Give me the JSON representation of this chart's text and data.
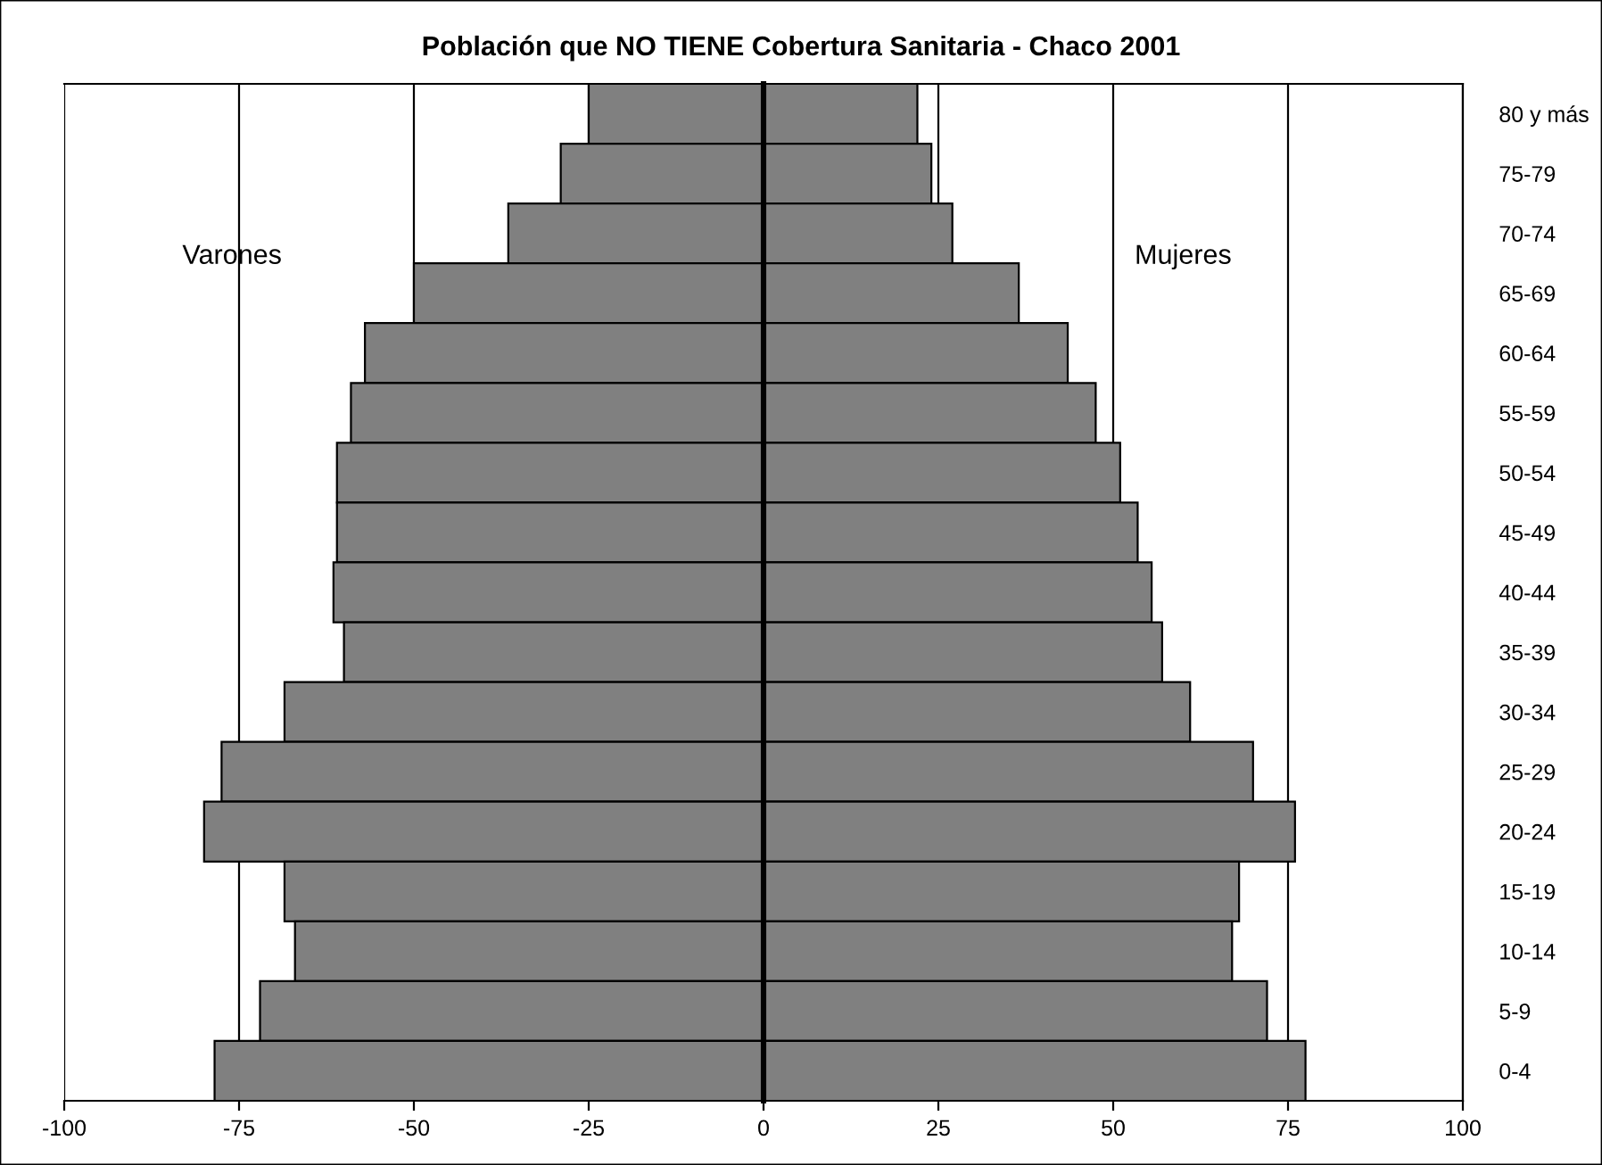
{
  "chart_data": {
    "type": "bar",
    "orientation": "horizontal",
    "title": "Población que NO TIENE Cobertura Sanitaria - Chaco 2001",
    "categories": [
      "80 y más",
      "75-79",
      "70-74",
      "65-69",
      "60-64",
      "55-59",
      "50-54",
      "45-49",
      "40-44",
      "35-39",
      "30-34",
      "25-29",
      "20-24",
      "15-19",
      "10-14",
      "5-9",
      "0-4"
    ],
    "series": [
      {
        "color": "#808080",
        "values": [
          -25,
          -29,
          -36.5,
          -50,
          -57,
          -59,
          -61,
          -61,
          -61.5,
          -60,
          -68.5,
          -77.5,
          -80,
          -68.5,
          -67,
          -72,
          -78.5
        ]
      },
      {
        "color": "#808080",
        "values": [
          22,
          24,
          27,
          36.5,
          43.5,
          47.5,
          51,
          53.5,
          55.5,
          57,
          61,
          70,
          76,
          68,
          67,
          72,
          77.5
        ]
      }
    ],
    "annotations": [
      "Varones",
      "Mujeres"
    ],
    "xlim": [
      -100,
      100
    ],
    "xticks": [
      -100,
      -75,
      -50,
      -25,
      0,
      25,
      50,
      75,
      100
    ],
    "stacked": true,
    "grid": "x",
    "legend": false
  }
}
